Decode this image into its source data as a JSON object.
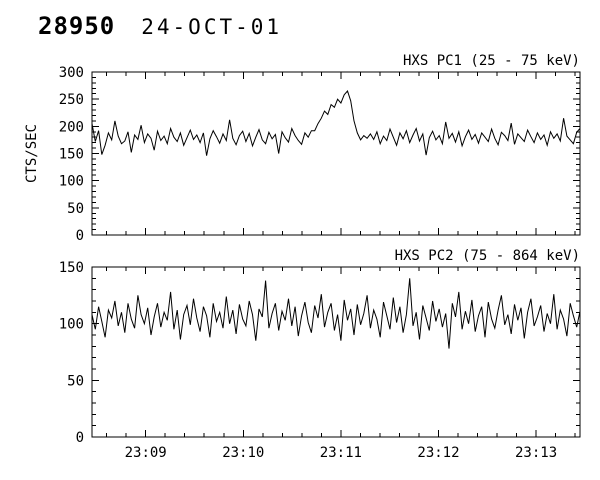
{
  "header": {
    "event_number": "28950",
    "date": "24-OCT-01"
  },
  "chart_data": [
    {
      "id": "pc1",
      "type": "line",
      "title": "HXS PC1 (25 - 75 keV)",
      "ylabel": "CTS/SEC",
      "ylim": [
        0,
        300
      ],
      "yticks": [
        0,
        50,
        100,
        150,
        200,
        250,
        300
      ],
      "x_start_min": 8.45,
      "x_end_min": 13.45,
      "xticks": [
        {
          "value": 9,
          "label": "23:09"
        },
        {
          "value": 10,
          "label": "23:10"
        },
        {
          "value": 11,
          "label": "23:11"
        },
        {
          "value": 12,
          "label": "23:12"
        },
        {
          "value": 13,
          "label": "23:13"
        }
      ],
      "show_x_labels": false,
      "values": [
        205,
        172,
        192,
        148,
        165,
        188,
        175,
        210,
        182,
        168,
        173,
        190,
        152,
        184,
        176,
        202,
        170,
        186,
        178,
        156,
        191,
        174,
        182,
        168,
        196,
        180,
        172,
        188,
        165,
        179,
        193,
        176,
        184,
        170,
        188,
        146,
        177,
        192,
        181,
        169,
        186,
        174,
        212,
        178,
        166,
        183,
        191,
        172,
        187,
        164,
        180,
        194,
        175,
        168,
        189,
        177,
        185,
        150,
        190,
        179,
        171,
        196,
        183,
        174,
        167,
        188,
        180,
        192,
        192,
        205,
        215,
        228,
        222,
        240,
        235,
        250,
        243,
        258,
        265,
        247,
        210,
        188,
        175,
        183,
        178,
        186,
        176,
        190,
        168,
        182,
        174,
        195,
        180,
        165,
        188,
        177,
        192,
        170,
        184,
        196,
        173,
        186,
        147,
        179,
        191,
        175,
        183,
        168,
        208,
        178,
        187,
        171,
        190,
        164,
        181,
        193,
        176,
        185,
        169,
        188,
        180,
        172,
        195,
        178,
        166,
        189,
        183,
        174,
        206,
        167,
        186,
        179,
        172,
        193,
        181,
        170,
        188,
        176,
        184,
        165,
        190,
        178,
        186,
        173,
        215,
        182,
        175,
        168,
        189,
        196
      ]
    },
    {
      "id": "pc2",
      "type": "line",
      "title": "HXS PC2 (75 - 864 keV)",
      "ylabel": "",
      "ylim": [
        0,
        150
      ],
      "yticks": [
        0,
        50,
        100,
        150
      ],
      "x_start_min": 8.45,
      "x_end_min": 13.45,
      "xticks": [
        {
          "value": 9,
          "label": "23:09"
        },
        {
          "value": 10,
          "label": "23:10"
        },
        {
          "value": 11,
          "label": "23:11"
        },
        {
          "value": 12,
          "label": "23:12"
        },
        {
          "value": 13,
          "label": "23:13"
        }
      ],
      "show_x_labels": true,
      "values": [
        108,
        95,
        115,
        102,
        88,
        112,
        105,
        120,
        98,
        110,
        92,
        118,
        104,
        96,
        125,
        108,
        100,
        114,
        90,
        106,
        118,
        97,
        110,
        103,
        128,
        95,
        112,
        86,
        108,
        116,
        99,
        122,
        105,
        93,
        115,
        107,
        88,
        118,
        102,
        110,
        96,
        124,
        100,
        112,
        91,
        117,
        104,
        98,
        120,
        108,
        85,
        113,
        106,
        138,
        96,
        109,
        118,
        94,
        111,
        103,
        122,
        98,
        115,
        89,
        107,
        119,
        101,
        92,
        116,
        105,
        126,
        97,
        110,
        118,
        94,
        108,
        85,
        121,
        103,
        113,
        90,
        117,
        99,
        109,
        125,
        96,
        112,
        104,
        88,
        119,
        107,
        95,
        123,
        101,
        115,
        92,
        108,
        140,
        98,
        110,
        86,
        116,
        105,
        94,
        120,
        102,
        113,
        97,
        109,
        78,
        118,
        106,
        128,
        95,
        111,
        100,
        121,
        93,
        107,
        115,
        88,
        119,
        104,
        96,
        112,
        125,
        99,
        108,
        91,
        117,
        103,
        114,
        87,
        110,
        122,
        98,
        106,
        116,
        93,
        109,
        100,
        126,
        95,
        112,
        104,
        89,
        118,
        107,
        97,
        111
      ]
    }
  ]
}
